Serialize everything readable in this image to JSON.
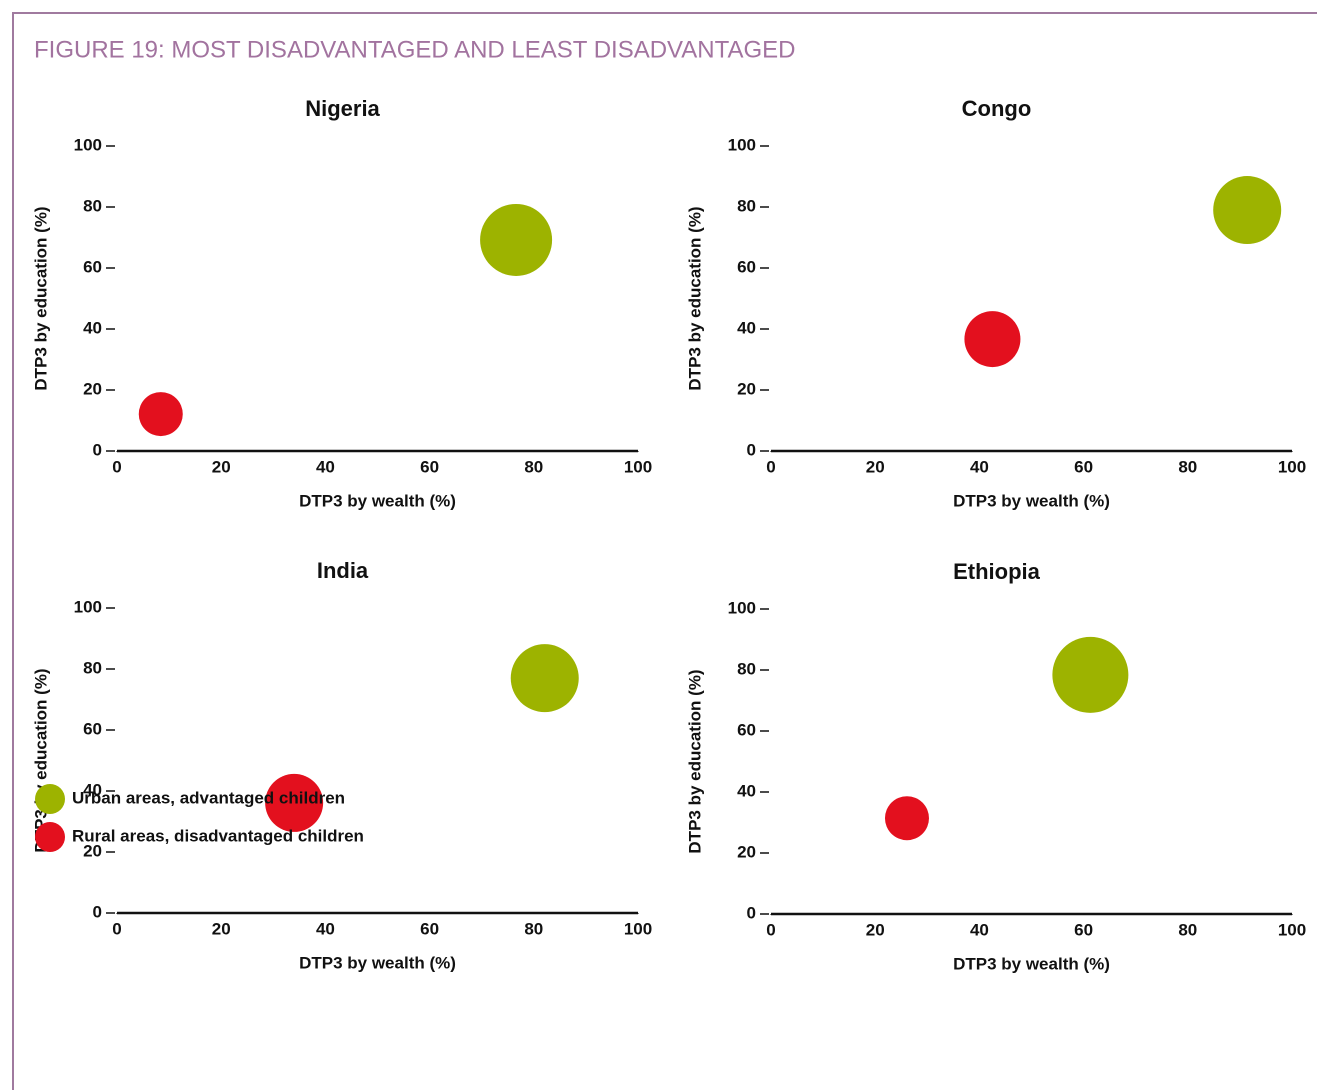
{
  "title": "FIGURE 19: MOST DISADVANTAGED AND LEAST DISADVANTAGED",
  "legend": [
    {
      "name": "Urban areas, advantaged children",
      "color": "#9db300"
    },
    {
      "name": "Rural areas, disadvantaged children",
      "color": "#e3101e"
    }
  ],
  "chart_data": [
    {
      "type": "scatter",
      "title": "Nigeria",
      "x_label": "DTP3 by wealth (%)",
      "y_label": "DTP3 by education (%)",
      "xlim": [
        0,
        100
      ],
      "ylim": [
        0,
        100
      ],
      "xticks": [
        0,
        20,
        40,
        60,
        80,
        100
      ],
      "yticks": [
        0,
        20,
        40,
        60,
        80,
        100
      ],
      "series": [
        {
          "x": [
            76.6
          ],
          "values": [
            69.2
          ],
          "sizes": [
            36
          ]
        },
        {
          "x": [
            8.4
          ],
          "values": [
            12.1
          ],
          "sizes": [
            22
          ]
        }
      ]
    },
    {
      "type": "scatter",
      "title": "Congo",
      "x_label": "DTP3 by wealth (%)",
      "y_label": "DTP3 by education (%)",
      "xlim": [
        0,
        100
      ],
      "ylim": [
        0,
        100
      ],
      "xticks": [
        0,
        20,
        40,
        60,
        80,
        100
      ],
      "yticks": [
        0,
        20,
        40,
        60,
        80,
        100
      ],
      "series": [
        {
          "x": [
            91.4
          ],
          "values": [
            79.0
          ],
          "sizes": [
            34
          ]
        },
        {
          "x": [
            42.5
          ],
          "values": [
            36.7
          ],
          "sizes": [
            28
          ]
        }
      ]
    },
    {
      "type": "scatter",
      "title": "India",
      "x_label": "DTP3 by wealth (%)",
      "y_label": "DTP3 by education (%)",
      "xlim": [
        0,
        100
      ],
      "ylim": [
        0,
        100
      ],
      "xticks": [
        0,
        20,
        40,
        60,
        80,
        100
      ],
      "yticks": [
        0,
        20,
        40,
        60,
        80,
        100
      ],
      "series": [
        {
          "x": [
            82.1
          ],
          "values": [
            77.0
          ],
          "sizes": [
            34
          ]
        },
        {
          "x": [
            34.0
          ],
          "values": [
            36.1
          ],
          "sizes": [
            29
          ]
        }
      ]
    },
    {
      "type": "scatter",
      "title": "Ethiopia",
      "x_label": "DTP3 by wealth (%)",
      "y_label": "DTP3 by education (%)",
      "xlim": [
        0,
        100
      ],
      "ylim": [
        0,
        100
      ],
      "xticks": [
        0,
        20,
        40,
        60,
        80,
        100
      ],
      "yticks": [
        0,
        20,
        40,
        60,
        80,
        100
      ],
      "series": [
        {
          "x": [
            61.3
          ],
          "values": [
            78.4
          ],
          "sizes": [
            38
          ]
        },
        {
          "x": [
            26.1
          ],
          "values": [
            31.4
          ],
          "sizes": [
            22
          ]
        }
      ]
    }
  ]
}
